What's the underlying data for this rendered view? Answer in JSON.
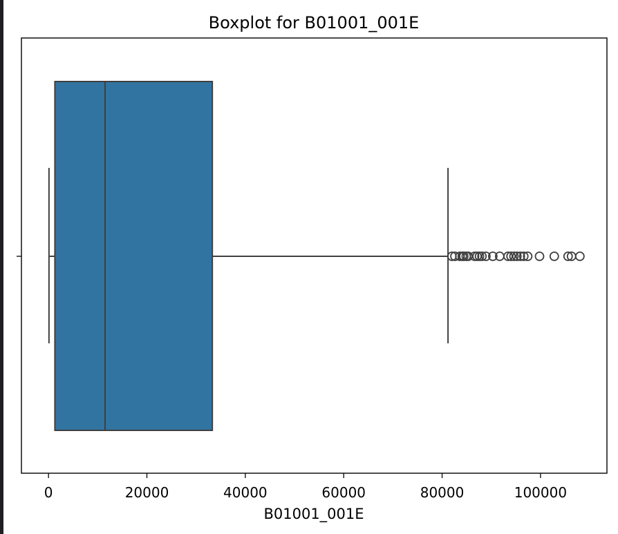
{
  "chart_data": {
    "type": "boxplot",
    "orientation": "horizontal",
    "title": "Boxplot for B01001_001E",
    "xlabel": "B01001_001E",
    "ylabel": "",
    "xlim": [
      -5500,
      113500
    ],
    "x_ticks": [
      0,
      20000,
      40000,
      60000,
      80000,
      100000
    ],
    "x_tick_labels": [
      "0",
      "20000",
      "40000",
      "60000",
      "80000",
      "100000"
    ],
    "grid": false,
    "box": {
      "whisker_low": 100,
      "q1": 1300,
      "median": 11500,
      "q3": 33300,
      "whisker_high": 81200,
      "color": "#3274a1",
      "line_color": "#3f3f3f"
    },
    "outliers": [
      82000,
      82600,
      83600,
      84100,
      84400,
      84900,
      85300,
      86600,
      87100,
      87600,
      88100,
      88900,
      90300,
      91700,
      93400,
      94000,
      94600,
      95200,
      95900,
      96600,
      97400,
      99800,
      102800,
      105600,
      106300,
      108000
    ]
  }
}
